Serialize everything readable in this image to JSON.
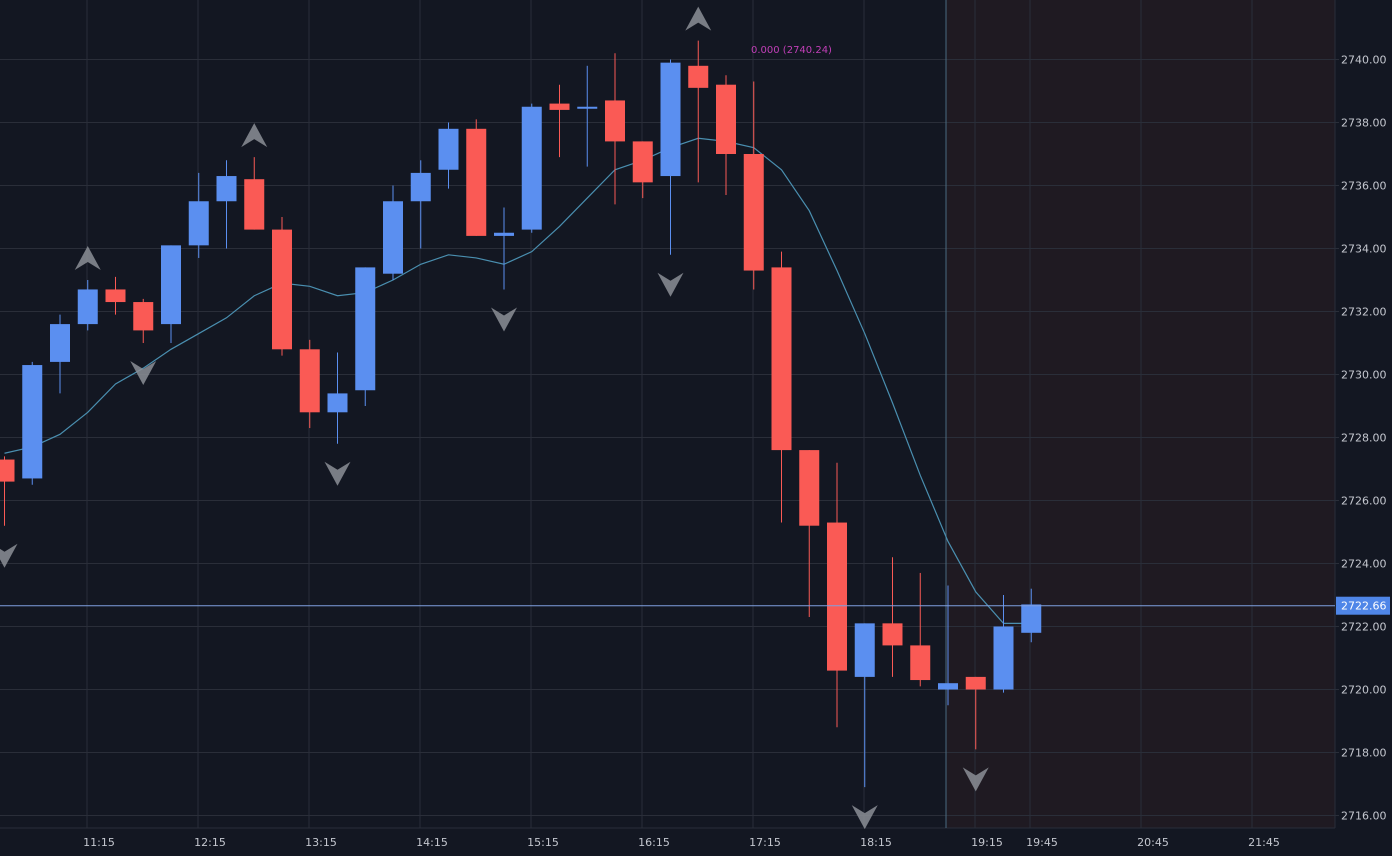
{
  "colors": {
    "background": "#131722",
    "grid": "#2a2e39",
    "up": "#5b8ff0",
    "down": "#fa5a55",
    "ma_line": "#4a8fb0",
    "crosshair": "#7f9fe0",
    "axis_text": "#c4c7cf",
    "price_label_bg": "#4f86e8",
    "shaded_region": "#1f1a22",
    "fib_label": "#c13fb7",
    "marker": "#8c8f96"
  },
  "chart_data": {
    "type": "candlestick",
    "title": "",
    "xlabel": "",
    "ylabel": "",
    "ylim": [
      2715.7,
      2741.7
    ],
    "y_ticks": [
      "2716.00",
      "2718.00",
      "2720.00",
      "2722.00",
      "2724.00",
      "2726.00",
      "2728.00",
      "2730.00",
      "2732.00",
      "2734.00",
      "2736.00",
      "2738.00",
      "2740.00"
    ],
    "x_ticks": [
      "11:15",
      "12:15",
      "13:15",
      "14:15",
      "15:15",
      "16:15",
      "17:15",
      "18:15",
      "19:15",
      "19:45",
      "20:45",
      "21:45"
    ],
    "grid": true,
    "current_price": "2722.66",
    "fib_label": "0.000 (2740.24)",
    "fib_label_value": 2740.24,
    "candles": [
      {
        "o": 2727.3,
        "h": 2727.4,
        "l": 2725.2,
        "c": 2726.6
      },
      {
        "o": 2726.7,
        "h": 2730.4,
        "l": 2726.5,
        "c": 2730.3
      },
      {
        "o": 2730.4,
        "h": 2731.9,
        "l": 2729.4,
        "c": 2731.6
      },
      {
        "o": 2731.6,
        "h": 2733.0,
        "l": 2731.4,
        "c": 2732.7
      },
      {
        "o": 2732.7,
        "h": 2733.1,
        "l": 2731.9,
        "c": 2732.3
      },
      {
        "o": 2732.3,
        "h": 2732.4,
        "l": 2731.0,
        "c": 2731.4
      },
      {
        "o": 2731.6,
        "h": 2734.1,
        "l": 2731.0,
        "c": 2734.1
      },
      {
        "o": 2734.1,
        "h": 2736.4,
        "l": 2733.7,
        "c": 2735.5
      },
      {
        "o": 2735.5,
        "h": 2736.8,
        "l": 2734.0,
        "c": 2736.3
      },
      {
        "o": 2736.2,
        "h": 2736.9,
        "l": 2734.6,
        "c": 2734.6
      },
      {
        "o": 2734.6,
        "h": 2735.0,
        "l": 2730.6,
        "c": 2730.8
      },
      {
        "o": 2730.8,
        "h": 2731.1,
        "l": 2728.3,
        "c": 2728.8
      },
      {
        "o": 2728.8,
        "h": 2730.7,
        "l": 2727.8,
        "c": 2729.4
      },
      {
        "o": 2729.5,
        "h": 2733.4,
        "l": 2729.0,
        "c": 2733.4
      },
      {
        "o": 2733.2,
        "h": 2736.0,
        "l": 2733.0,
        "c": 2735.5
      },
      {
        "o": 2735.5,
        "h": 2736.8,
        "l": 2734.0,
        "c": 2736.4
      },
      {
        "o": 2736.5,
        "h": 2738.0,
        "l": 2735.9,
        "c": 2737.8
      },
      {
        "o": 2737.8,
        "h": 2738.1,
        "l": 2734.4,
        "c": 2734.4
      },
      {
        "o": 2734.4,
        "h": 2735.3,
        "l": 2732.7,
        "c": 2734.5
      },
      {
        "o": 2734.6,
        "h": 2738.6,
        "l": 2734.5,
        "c": 2738.5
      },
      {
        "o": 2738.6,
        "h": 2739.2,
        "l": 2736.9,
        "c": 2738.4
      },
      {
        "o": 2738.5,
        "h": 2739.8,
        "l": 2736.6,
        "c": 2738.5
      },
      {
        "o": 2738.7,
        "h": 2740.2,
        "l": 2735.4,
        "c": 2737.4
      },
      {
        "o": 2737.4,
        "h": 2737.4,
        "l": 2735.6,
        "c": 2736.1
      },
      {
        "o": 2736.3,
        "h": 2740.0,
        "l": 2733.8,
        "c": 2739.9
      },
      {
        "o": 2739.8,
        "h": 2740.6,
        "l": 2736.1,
        "c": 2739.1
      },
      {
        "o": 2739.2,
        "h": 2739.5,
        "l": 2735.7,
        "c": 2737.0
      },
      {
        "o": 2737.0,
        "h": 2739.3,
        "l": 2732.7,
        "c": 2733.3
      },
      {
        "o": 2733.4,
        "h": 2733.9,
        "l": 2725.3,
        "c": 2727.6
      },
      {
        "o": 2727.6,
        "h": 2727.6,
        "l": 2722.3,
        "c": 2725.2
      },
      {
        "o": 2725.3,
        "h": 2727.2,
        "l": 2718.8,
        "c": 2720.6
      },
      {
        "o": 2720.4,
        "h": 2722.1,
        "l": 2716.9,
        "c": 2722.1
      },
      {
        "o": 2722.1,
        "h": 2724.2,
        "l": 2720.4,
        "c": 2721.4
      },
      {
        "o": 2721.4,
        "h": 2723.7,
        "l": 2720.1,
        "c": 2720.3
      },
      {
        "o": 2720.0,
        "h": 2723.3,
        "l": 2719.5,
        "c": 2720.2
      },
      {
        "o": 2720.4,
        "h": 2720.4,
        "l": 2718.1,
        "c": 2720.0
      },
      {
        "o": 2720.0,
        "h": 2723.0,
        "l": 2719.9,
        "c": 2722.0
      },
      {
        "o": 2721.8,
        "h": 2723.2,
        "l": 2721.5,
        "c": 2722.7
      }
    ],
    "moving_average": [
      2727.5,
      2727.7,
      2728.1,
      2728.8,
      2729.7,
      2730.2,
      2730.8,
      2731.3,
      2731.8,
      2732.5,
      2732.9,
      2732.8,
      2732.5,
      2732.6,
      2733.0,
      2733.5,
      2733.8,
      2733.7,
      2733.5,
      2733.9,
      2734.7,
      2735.6,
      2736.5,
      2736.8,
      2737.2,
      2737.5,
      2737.4,
      2737.2,
      2736.5,
      2735.2,
      2733.3,
      2731.3,
      2729.1,
      2726.8,
      2724.7,
      2723.1,
      2722.1,
      2722.1
    ],
    "markers": [
      {
        "i": 0,
        "dir": "down"
      },
      {
        "i": 3,
        "dir": "up"
      },
      {
        "i": 5,
        "dir": "down"
      },
      {
        "i": 9,
        "dir": "up"
      },
      {
        "i": 12,
        "dir": "down"
      },
      {
        "i": 18,
        "dir": "down"
      },
      {
        "i": 24,
        "dir": "down"
      },
      {
        "i": 25,
        "dir": "up"
      },
      {
        "i": 31,
        "dir": "down"
      },
      {
        "i": 35,
        "dir": "down"
      }
    ]
  }
}
